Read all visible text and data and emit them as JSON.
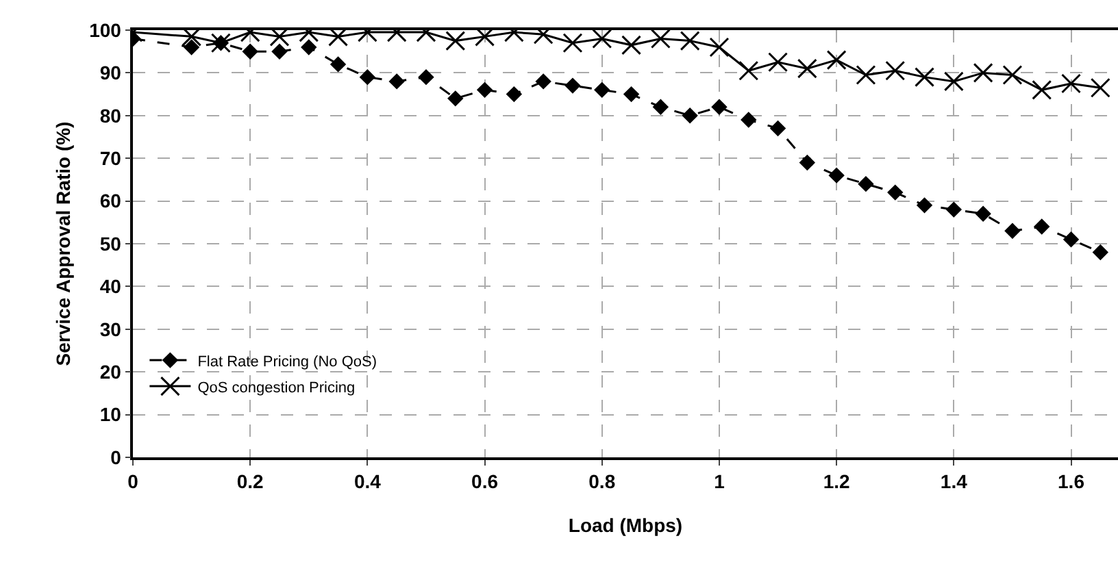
{
  "chart_data": {
    "type": "line",
    "xlabel": "Load (Mbps)",
    "ylabel": "Service Approval Ratio (%)",
    "x": [
      0,
      0.1,
      0.15,
      0.2,
      0.25,
      0.3,
      0.35,
      0.4,
      0.45,
      0.5,
      0.55,
      0.6,
      0.65,
      0.7,
      0.75,
      0.8,
      0.85,
      0.9,
      0.95,
      1.0,
      1.05,
      1.1,
      1.15,
      1.2,
      1.25,
      1.3,
      1.35,
      1.4,
      1.45,
      1.5,
      1.55,
      1.6,
      1.65
    ],
    "series": [
      {
        "name": "Flat Rate Pricing (No QoS)",
        "color": "#000000",
        "marker": "diamond",
        "line_style": "dashed",
        "values": [
          98,
          96,
          97,
          95,
          95,
          96,
          92,
          89,
          88,
          89,
          84,
          86,
          85,
          88,
          87,
          86,
          85,
          82,
          80,
          82,
          79,
          77,
          69,
          66,
          64,
          62,
          59,
          58,
          57,
          53,
          54,
          51,
          48
        ]
      },
      {
        "name": "QoS congestion Pricing",
        "color": "#000000",
        "marker": "cross",
        "line_style": "solid",
        "values": [
          99.5,
          98.5,
          97,
          99.5,
          98.5,
          99.5,
          98.5,
          99.5,
          99.5,
          99.5,
          97.5,
          98.5,
          99.5,
          99,
          97,
          98,
          96.5,
          98,
          97.5,
          96,
          90.5,
          92.5,
          91,
          93,
          89.5,
          90.5,
          89,
          88,
          90,
          89.5,
          86,
          87.5,
          86.5
        ]
      }
    ],
    "xlim": [
      0,
      1.68
    ],
    "xticks": [
      0,
      {
        "value": 0.2,
        "label": "0.2"
      },
      {
        "value": 0.4,
        "label": "0.4"
      },
      {
        "value": 0.6,
        "label": "0.6"
      },
      {
        "value": 0.8,
        "label": "0.8"
      },
      1,
      {
        "value": 1.2,
        "label": "1.2"
      },
      {
        "value": 1.4,
        "label": "1.4"
      },
      {
        "value": 1.6,
        "label": "1.6"
      }
    ],
    "ylim": [
      0,
      100
    ],
    "yticks": [
      0,
      10,
      20,
      30,
      40,
      50,
      60,
      70,
      80,
      90,
      100
    ],
    "grid": true,
    "legend": "bottom left"
  }
}
